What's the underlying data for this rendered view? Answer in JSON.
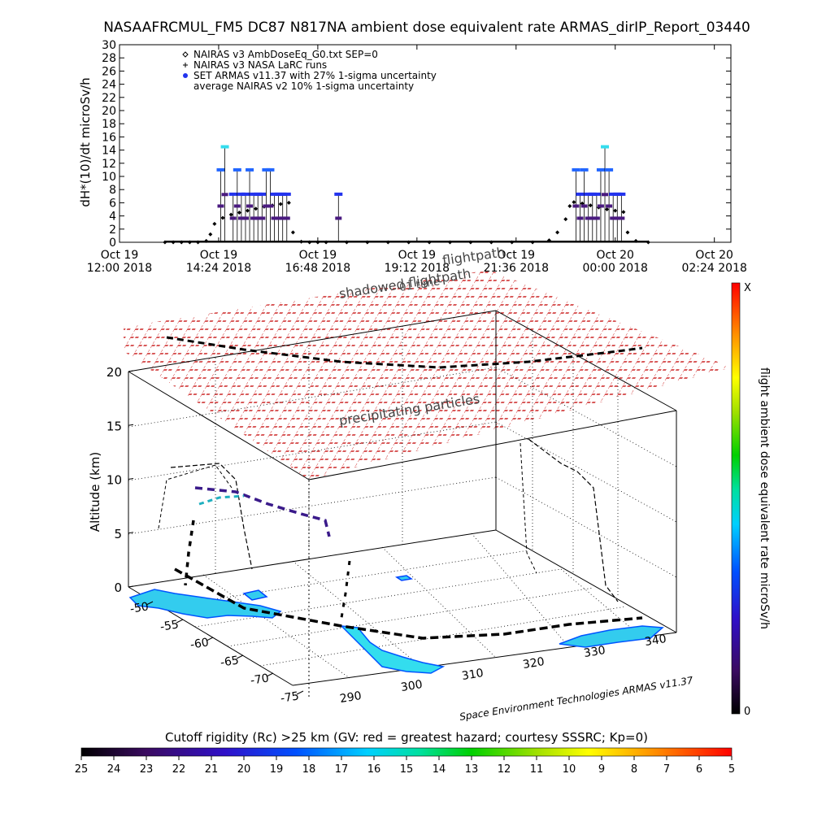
{
  "chart_data": [
    {
      "type": "line",
      "title": "NASAAFRCMUL_FM5 DC87 N817NA ambient dose equivalent rate ARMAS_dirIP_Report_03440",
      "ylabel": "dH*(10)/dt microSv/h",
      "ylim": [
        0,
        30
      ],
      "y_ticks": [
        "0",
        "2",
        "4",
        "6",
        "8",
        "10",
        "12",
        "14",
        "16",
        "18",
        "20",
        "22",
        "24",
        "26",
        "28",
        "30"
      ],
      "x_ticks": [
        [
          "Oct 19",
          "12:00 2018"
        ],
        [
          "Oct 19",
          "14:24 2018"
        ],
        [
          "Oct 19",
          "16:48 2018"
        ],
        [
          "Oct 19",
          "19:12 2018"
        ],
        [
          "Oct 19",
          "21:36 2018"
        ],
        [
          "Oct 20",
          "00:00 2018"
        ],
        [
          "Oct 20",
          "02:24 2018"
        ]
      ],
      "x_overlay_text": "flightpath",
      "legend": [
        {
          "marker": "diamond",
          "label": "NAIRAS v3 AmbDoseEq_G0.txt SEP=0"
        },
        {
          "marker": "plus",
          "label": "NAIRAS v3 NASA LaRC runs"
        },
        {
          "marker": "dot",
          "label": "SET ARMAS v11.37 with 27% 1-sigma uncertainty"
        },
        {
          "marker": "none",
          "label": "average NAIRAS v2 10% 1-sigma uncertainty"
        }
      ],
      "series": [
        {
          "name": "NAIRAS v3 AmbDoseEq_G0.txt SEP=0",
          "x_hours": [
            13.1,
            13.3,
            13.5,
            13.7,
            13.9,
            14.1,
            14.2,
            14.3,
            14.5,
            14.7,
            14.9,
            15.1,
            15.3,
            15.5,
            15.7,
            15.9,
            16.1,
            16.2,
            16.4,
            16.6,
            16.8,
            17.0,
            17.5,
            18.0,
            18.5,
            19.0,
            19.5,
            20.0,
            20.5,
            21.0,
            21.5,
            22.0,
            22.4,
            22.6,
            22.8,
            22.9,
            23.0,
            23.2,
            23.4,
            23.6,
            23.8,
            24.0,
            24.2,
            24.3,
            24.5,
            24.8
          ],
          "values": [
            0,
            0,
            0,
            0,
            0,
            0.2,
            1.2,
            2.8,
            3.7,
            4.2,
            4.5,
            4.8,
            5.1,
            5.4,
            5.6,
            5.8,
            6.0,
            1.5,
            0.1,
            0,
            0,
            0,
            0,
            0,
            0,
            0,
            0,
            0,
            0,
            0,
            0,
            0,
            0.3,
            1.5,
            3.5,
            5.5,
            6.1,
            5.9,
            5.6,
            5.3,
            5.0,
            4.8,
            4.6,
            1.5,
            0.2,
            0
          ]
        },
        {
          "name": "SET ARMAS v11.37 with 27% 1-sigma uncertainty",
          "x_hours": [
            14.45,
            14.55,
            14.75,
            14.85,
            14.95,
            15.05,
            15.15,
            15.25,
            15.35,
            15.45,
            15.55,
            15.65,
            15.75,
            15.85,
            15.95,
            16.05,
            17.3,
            23.05,
            23.15,
            23.25,
            23.35,
            23.45,
            23.55,
            23.65,
            23.75,
            23.85,
            23.95,
            24.05,
            24.15
          ],
          "values": [
            11,
            14.5,
            7.3,
            11,
            7.3,
            7.3,
            11,
            7.3,
            7.3,
            7.3,
            11,
            11,
            7.3,
            7.3,
            7.3,
            7.3,
            7.3,
            11,
            7.3,
            11,
            7.3,
            7.3,
            7.3,
            11,
            14.5,
            11,
            7.3,
            7.3,
            7.3
          ]
        }
      ]
    },
    {
      "type": "scatter",
      "title": "shadowed flightpath",
      "subtitle": "01 time",
      "xlabel": "",
      "ylabel": "Altitude (km)",
      "zlim": [
        0,
        20
      ],
      "z_ticks": [
        "0",
        "5",
        "10",
        "15",
        "20"
      ],
      "lat_ticks": [
        "-50",
        "-55",
        "-60",
        "-65",
        "-70",
        "-75"
      ],
      "lon_ticks": [
        "290",
        "300",
        "310",
        "320",
        "330",
        "340"
      ],
      "annotations": [
        "precipitating particles"
      ],
      "credit": "Space Environment Technologies ARMAS v11.37",
      "colorbar_label": "flight ambient dose equivalent rate microSv/h",
      "colorbar_ticks": [
        "X",
        "0"
      ]
    },
    {
      "type": "heatmap",
      "title": "Cutoff rigidity (Rc) >25 km (GV: red = greatest hazard; courtesy SSSRC; Kp=0)",
      "colorbar_ticks": [
        "25",
        "24",
        "23",
        "22",
        "21",
        "20",
        "19",
        "18",
        "17",
        "16",
        "15",
        "14",
        "13",
        "12",
        "11",
        "10",
        "9",
        "8",
        "7",
        "6",
        "5"
      ]
    }
  ]
}
